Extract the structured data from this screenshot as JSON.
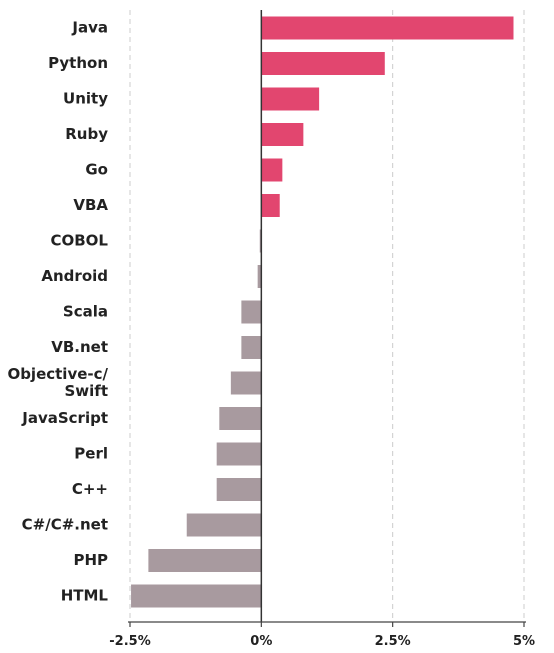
{
  "chart_data": {
    "type": "bar",
    "orientation": "horizontal",
    "categories": [
      "Java",
      "Python",
      "Unity",
      "Ruby",
      "Go",
      "VBA",
      "COBOL",
      "Android",
      "Scala",
      "VB.net",
      "Objective-c/\nSwift",
      "JavaScript",
      "Perl",
      "C++",
      "C#/C#.net",
      "PHP",
      "HTML"
    ],
    "values": [
      4.8,
      2.35,
      1.1,
      0.8,
      0.4,
      0.35,
      -0.03,
      -0.07,
      -0.38,
      -0.38,
      -0.58,
      -0.8,
      -0.85,
      -0.85,
      -1.42,
      -2.15,
      -2.48
    ],
    "xlim": [
      -2.5,
      5
    ],
    "xticks": [
      -2.5,
      0,
      2.5,
      5
    ],
    "xtick_labels": [
      "-2.5%",
      "0%",
      "2.5%",
      "5%"
    ],
    "grid": true,
    "title": "",
    "xlabel": "",
    "ylabel": "",
    "colors": {
      "positive": "#e2466f",
      "negative": "#a89a9f"
    }
  }
}
